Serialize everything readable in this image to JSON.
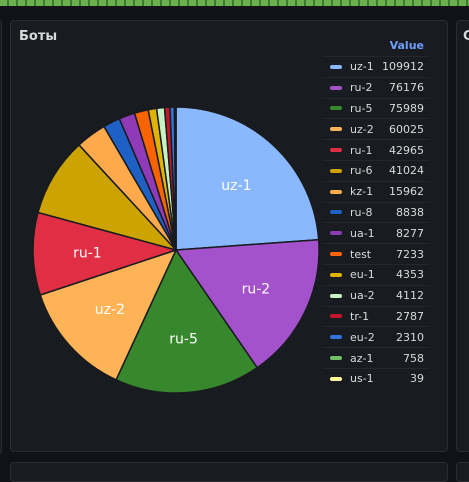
{
  "panel": {
    "title": "Боты"
  },
  "right_panel": {
    "title": "С"
  },
  "legend": {
    "header": "Value"
  },
  "chart_data": {
    "type": "pie",
    "title": "Боты",
    "legend_placement": "right",
    "slices": [
      {
        "name": "uz-1",
        "value": 109912,
        "color": "#8ab8ff"
      },
      {
        "name": "ru-2",
        "value": 76176,
        "color": "#a352cc"
      },
      {
        "name": "ru-5",
        "value": 75989,
        "color": "#37872d"
      },
      {
        "name": "uz-2",
        "value": 60025,
        "color": "#ffb357"
      },
      {
        "name": "ru-1",
        "value": 42965,
        "color": "#e02f44"
      },
      {
        "name": "ru-6",
        "value": 41024,
        "color": "#cca300"
      },
      {
        "name": "kz-1",
        "value": 15962,
        "color": "#ffa94d"
      },
      {
        "name": "ru-8",
        "value": 8838,
        "color": "#1f60c4"
      },
      {
        "name": "ua-1",
        "value": 8277,
        "color": "#8f3bb8"
      },
      {
        "name": "test",
        "value": 7233,
        "color": "#fa6400"
      },
      {
        "name": "eu-1",
        "value": 4353,
        "color": "#e0b400"
      },
      {
        "name": "ua-2",
        "value": 4112,
        "color": "#c8f2c2"
      },
      {
        "name": "tr-1",
        "value": 2787,
        "color": "#c4162a"
      },
      {
        "name": "eu-2",
        "value": 2310,
        "color": "#3274d9"
      },
      {
        "name": "az-1",
        "value": 758,
        "color": "#73bf69"
      },
      {
        "name": "us-1",
        "value": 39,
        "color": "#fff899"
      }
    ]
  }
}
